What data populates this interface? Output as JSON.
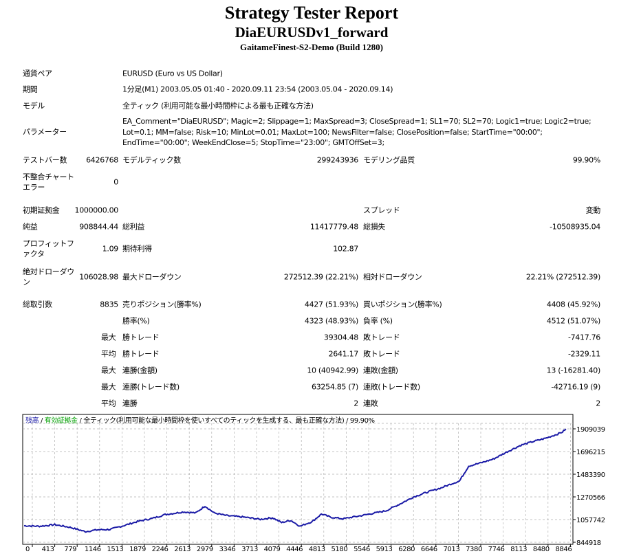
{
  "header": {
    "title": "Strategy Tester Report",
    "ea_name": "DiaEURUSDv1_forward",
    "server": "GaitameFinest-S2-Demo (Build 1280)"
  },
  "info": [
    {
      "label": "通貨ペア",
      "value": "EURUSD (Euro vs US Dollar)"
    },
    {
      "label": "期間",
      "value": "1分足(M1) 2003.05.05 01:40 - 2020.09.11 23:54 (2003.05.04 - 2020.09.14)"
    },
    {
      "label": "モデル",
      "value": "全ティック (利用可能な最小時間枠による最も正確な方法)"
    },
    {
      "label": "パラメーター",
      "value": "EA_Comment=\"DiaEURUSD\"; Magic=2; Slippage=1; MaxSpread=3; CloseSpread=1; SL1=70; SL2=70; Logic1=true; Logic2=true; Lot=0.1; MM=false; Risk=10; MinLot=0.01; MaxLot=100; NewsFilter=false; ClosePosition=false; StartTime=\"00:00\"; EndTime=\"00:00\"; WeekEndClose=5; StopTime=\"23:00\"; GMTOffSet=3;"
    }
  ],
  "stats": [
    [
      "テストバー数",
      "6426768",
      "モデルティック数",
      "299243936",
      "モデリング品質",
      "99.90%"
    ],
    [
      "不整合チャートエラー",
      "0",
      "",
      "",
      "",
      ""
    ],
    [
      "初期証拠金",
      "1000000.00",
      "",
      "",
      "スプレッド",
      "変動"
    ],
    [
      "純益",
      "908844.44",
      "総利益",
      "11417779.48",
      "総損失",
      "-10508935.04"
    ],
    [
      "プロフィットファクタ",
      "1.09",
      "期待利得",
      "102.87",
      "",
      ""
    ],
    [
      "絶対ドローダウン",
      "106028.98",
      "最大ドローダウン",
      "272512.39 (22.21%)",
      "相対ドローダウン",
      "22.21% (272512.39)"
    ],
    [
      "総取引数",
      "8835",
      "売りポジション(勝率%)",
      "4427 (51.93%)",
      "買いポジション(勝率%)",
      "4408 (45.92%)"
    ],
    [
      "",
      "",
      "勝率(%)",
      "4323 (48.93%)",
      "負率 (%)",
      "4512 (51.07%)"
    ],
    [
      "",
      "最大",
      "勝トレード",
      "39304.48",
      "敗トレード",
      "-7417.76"
    ],
    [
      "",
      "平均",
      "勝トレード",
      "2641.17",
      "敗トレード",
      "-2329.11"
    ],
    [
      "",
      "最大",
      "連勝(金額)",
      "10 (40942.99)",
      "連敗(金額)",
      "13 (-16281.40)"
    ],
    [
      "",
      "最大",
      "連勝(トレード数)",
      "63254.85 (7)",
      "連敗(トレード数)",
      "-42716.19 (9)"
    ],
    [
      "",
      "平均",
      "連勝",
      "2",
      "連敗",
      "2"
    ]
  ],
  "chart_data": {
    "type": "line",
    "legend": {
      "balance": "残高",
      "equity": "有効証拠金",
      "model": "全ティック(利用可能な最小時間枠を使いすべてのティックを生成する、最も正確な方法)",
      "quality": "99.90%"
    },
    "colors": {
      "balance": "#1a1aa6",
      "equity": "#00a000",
      "grid": "#b0b0b0"
    },
    "x_ticks": [
      0,
      413,
      779,
      1146,
      1513,
      1879,
      2246,
      2613,
      2979,
      3346,
      3713,
      4079,
      4446,
      4813,
      5180,
      5546,
      5913,
      6280,
      6646,
      7013,
      7380,
      7746,
      8113,
      8480,
      8846
    ],
    "y_ticks": [
      844918,
      1057742,
      1270566,
      1483390,
      1696215,
      1909039
    ],
    "ylim": [
      844918,
      1909039
    ],
    "xlim": [
      0,
      8950
    ],
    "series": [
      {
        "name": "残高",
        "x": [
          0,
          250,
          500,
          750,
          1000,
          1200,
          1400,
          1650,
          1850,
          2100,
          2300,
          2600,
          2800,
          2950,
          3100,
          3300,
          3600,
          3850,
          4050,
          4200,
          4350,
          4500,
          4700,
          4850,
          5000,
          5200,
          5500,
          5900,
          6150,
          6350,
          6600,
          6800,
          7000,
          7100,
          7250,
          7450,
          7650,
          7900,
          8100,
          8300,
          8500,
          8700,
          8780,
          8835
        ],
        "y": [
          1000000,
          995000,
          1010000,
          985000,
          945000,
          962000,
          965000,
          1005000,
          1040000,
          1070000,
          1105000,
          1130000,
          1120000,
          1185000,
          1120000,
          1095000,
          1080000,
          1060000,
          1075000,
          1030000,
          1050000,
          995000,
          1040000,
          1110000,
          1080000,
          1065000,
          1095000,
          1140000,
          1210000,
          1270000,
          1320000,
          1355000,
          1400000,
          1420000,
          1560000,
          1590000,
          1625000,
          1700000,
          1755000,
          1790000,
          1820000,
          1860000,
          1880000,
          1908844
        ]
      }
    ]
  }
}
